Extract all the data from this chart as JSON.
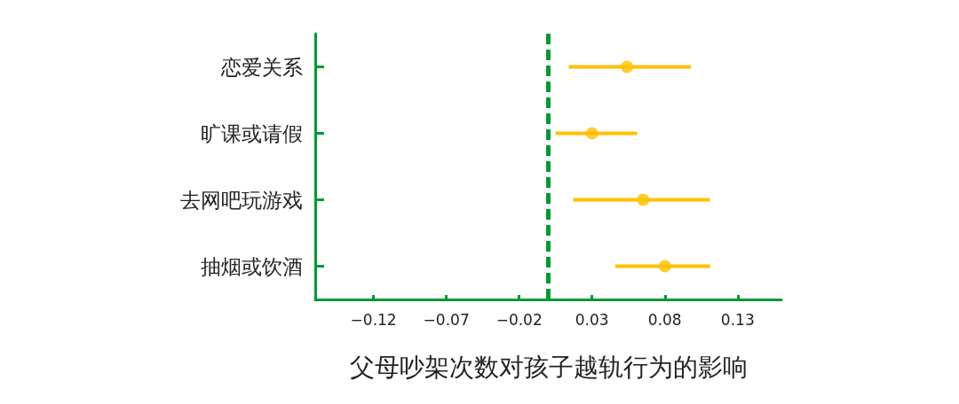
{
  "chart_data": {
    "type": "scatter",
    "orientation": "horizontal",
    "xlabel": "父母吵架次数对孩子越轨行为的影响",
    "categories": [
      "恋爱关系",
      "旷课或请假",
      "去网吧玩游戏",
      "抽烟或饮酒"
    ],
    "series": [
      {
        "color": "#ffc000",
        "values": [
          0.054,
          0.03,
          0.065,
          0.08
        ],
        "errors": [
          [
            0.014,
            0.098
          ],
          [
            0.005,
            0.061
          ],
          [
            0.017,
            0.111
          ],
          [
            0.046,
            0.111
          ]
        ]
      }
    ],
    "xlim": [
      -0.16,
      0.16
    ],
    "xticks": [
      -0.12,
      -0.07,
      -0.02,
      0.03,
      0.08,
      0.13
    ],
    "ref_lines": [
      {
        "axis": "x",
        "value": 0,
        "color": "#009933",
        "line_style": "dashed"
      }
    ],
    "grid": false,
    "marker": "circle"
  }
}
